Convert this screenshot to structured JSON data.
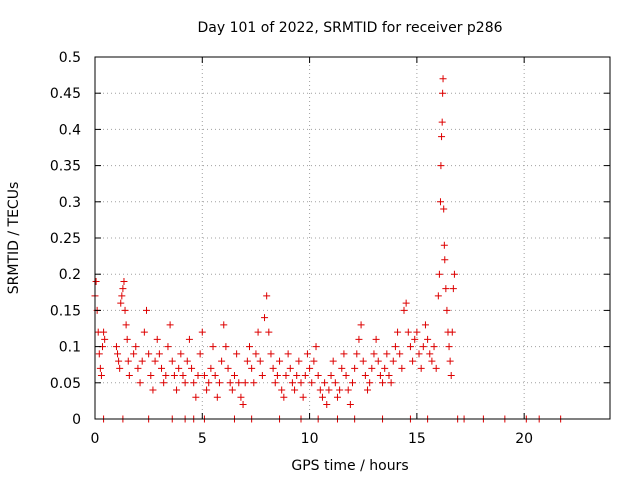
{
  "chart_data": {
    "type": "scatter",
    "title": "Day 101 of 2022, SRMTID for receiver p286",
    "xlabel": "GPS time / hours",
    "ylabel": "SRMTID / TECUs",
    "xlim": [
      0,
      24
    ],
    "ylim": [
      0,
      0.5
    ],
    "xticks": [
      0,
      5,
      10,
      15,
      20
    ],
    "xtick_labels": [
      "0",
      "5",
      "10",
      "15",
      "20"
    ],
    "yticks": [
      0,
      0.05,
      0.1,
      0.15,
      0.2,
      0.25,
      0.3,
      0.35,
      0.4,
      0.45,
      0.5
    ],
    "ytick_labels": [
      "0",
      "0.05",
      "0.1",
      "0.15",
      "0.2",
      "0.25",
      "0.3",
      "0.35",
      "0.4",
      "0.45",
      "0.5"
    ],
    "grid": true,
    "marker": "+",
    "color": "#dd0000",
    "series": [
      {
        "name": "SRMTID",
        "points": [
          [
            0.0,
            0.17
          ],
          [
            0.05,
            0.19
          ],
          [
            0.1,
            0.15
          ],
          [
            0.15,
            0.12
          ],
          [
            0.2,
            0.09
          ],
          [
            0.25,
            0.07
          ],
          [
            0.3,
            0.06
          ],
          [
            0.35,
            0.1
          ],
          [
            0.4,
            0.12
          ],
          [
            0.45,
            0.11
          ],
          [
            1.0,
            0.1
          ],
          [
            1.05,
            0.09
          ],
          [
            1.1,
            0.08
          ],
          [
            1.15,
            0.07
          ],
          [
            1.2,
            0.16
          ],
          [
            1.25,
            0.17
          ],
          [
            1.3,
            0.18
          ],
          [
            1.35,
            0.19
          ],
          [
            1.4,
            0.15
          ],
          [
            1.45,
            0.13
          ],
          [
            1.5,
            0.11
          ],
          [
            1.55,
            0.08
          ],
          [
            1.6,
            0.06
          ],
          [
            1.8,
            0.09
          ],
          [
            1.9,
            0.1
          ],
          [
            2.0,
            0.07
          ],
          [
            2.1,
            0.05
          ],
          [
            2.2,
            0.08
          ],
          [
            2.3,
            0.12
          ],
          [
            2.4,
            0.15
          ],
          [
            2.5,
            0.09
          ],
          [
            2.6,
            0.06
          ],
          [
            2.7,
            0.04
          ],
          [
            2.8,
            0.08
          ],
          [
            2.9,
            0.11
          ],
          [
            3.0,
            0.09
          ],
          [
            3.1,
            0.07
          ],
          [
            3.2,
            0.05
          ],
          [
            3.3,
            0.06
          ],
          [
            3.4,
            0.1
          ],
          [
            3.5,
            0.13
          ],
          [
            3.6,
            0.08
          ],
          [
            3.7,
            0.06
          ],
          [
            3.8,
            0.04
          ],
          [
            3.9,
            0.07
          ],
          [
            4.0,
            0.09
          ],
          [
            4.1,
            0.06
          ],
          [
            4.2,
            0.05
          ],
          [
            4.3,
            0.08
          ],
          [
            4.4,
            0.11
          ],
          [
            4.5,
            0.07
          ],
          [
            4.6,
            0.05
          ],
          [
            4.7,
            0.03
          ],
          [
            4.8,
            0.06
          ],
          [
            4.9,
            0.09
          ],
          [
            5.0,
            0.12
          ],
          [
            5.1,
            0.06
          ],
          [
            5.2,
            0.04
          ],
          [
            5.3,
            0.05
          ],
          [
            5.4,
            0.07
          ],
          [
            5.5,
            0.1
          ],
          [
            5.6,
            0.06
          ],
          [
            5.7,
            0.03
          ],
          [
            5.8,
            0.05
          ],
          [
            5.9,
            0.08
          ],
          [
            6.0,
            0.13
          ],
          [
            6.1,
            0.1
          ],
          [
            6.2,
            0.07
          ],
          [
            6.3,
            0.05
          ],
          [
            6.4,
            0.04
          ],
          [
            6.5,
            0.06
          ],
          [
            6.6,
            0.09
          ],
          [
            6.7,
            0.05
          ],
          [
            6.8,
            0.03
          ],
          [
            6.9,
            0.02
          ],
          [
            7.0,
            0.05
          ],
          [
            7.1,
            0.08
          ],
          [
            7.2,
            0.1
          ],
          [
            7.3,
            0.07
          ],
          [
            7.4,
            0.05
          ],
          [
            7.5,
            0.09
          ],
          [
            7.6,
            0.12
          ],
          [
            7.7,
            0.08
          ],
          [
            7.8,
            0.06
          ],
          [
            7.9,
            0.14
          ],
          [
            8.0,
            0.17
          ],
          [
            8.1,
            0.12
          ],
          [
            8.2,
            0.09
          ],
          [
            8.3,
            0.07
          ],
          [
            8.4,
            0.05
          ],
          [
            8.5,
            0.06
          ],
          [
            8.6,
            0.08
          ],
          [
            8.7,
            0.04
          ],
          [
            8.8,
            0.03
          ],
          [
            8.9,
            0.06
          ],
          [
            9.0,
            0.09
          ],
          [
            9.1,
            0.07
          ],
          [
            9.2,
            0.05
          ],
          [
            9.3,
            0.04
          ],
          [
            9.4,
            0.06
          ],
          [
            9.5,
            0.08
          ],
          [
            9.6,
            0.05
          ],
          [
            9.7,
            0.03
          ],
          [
            9.8,
            0.06
          ],
          [
            9.9,
            0.09
          ],
          [
            10.0,
            0.07
          ],
          [
            10.1,
            0.05
          ],
          [
            10.2,
            0.08
          ],
          [
            10.3,
            0.1
          ],
          [
            10.4,
            0.06
          ],
          [
            10.5,
            0.04
          ],
          [
            10.6,
            0.03
          ],
          [
            10.7,
            0.05
          ],
          [
            10.8,
            0.02
          ],
          [
            10.9,
            0.04
          ],
          [
            11.0,
            0.06
          ],
          [
            11.1,
            0.08
          ],
          [
            11.2,
            0.05
          ],
          [
            11.3,
            0.03
          ],
          [
            11.4,
            0.04
          ],
          [
            11.5,
            0.07
          ],
          [
            11.6,
            0.09
          ],
          [
            11.7,
            0.06
          ],
          [
            11.8,
            0.04
          ],
          [
            11.9,
            0.02
          ],
          [
            12.0,
            0.05
          ],
          [
            12.1,
            0.07
          ],
          [
            12.2,
            0.09
          ],
          [
            12.3,
            0.11
          ],
          [
            12.4,
            0.13
          ],
          [
            12.5,
            0.08
          ],
          [
            12.6,
            0.06
          ],
          [
            12.7,
            0.04
          ],
          [
            12.8,
            0.05
          ],
          [
            12.9,
            0.07
          ],
          [
            13.0,
            0.09
          ],
          [
            13.1,
            0.11
          ],
          [
            13.2,
            0.08
          ],
          [
            13.3,
            0.06
          ],
          [
            13.4,
            0.05
          ],
          [
            13.5,
            0.07
          ],
          [
            13.6,
            0.09
          ],
          [
            13.7,
            0.06
          ],
          [
            13.8,
            0.05
          ],
          [
            13.9,
            0.08
          ],
          [
            14.0,
            0.1
          ],
          [
            14.1,
            0.12
          ],
          [
            14.2,
            0.09
          ],
          [
            14.3,
            0.07
          ],
          [
            14.4,
            0.15
          ],
          [
            14.5,
            0.16
          ],
          [
            14.6,
            0.12
          ],
          [
            14.7,
            0.1
          ],
          [
            14.8,
            0.08
          ],
          [
            14.9,
            0.11
          ],
          [
            15.0,
            0.12
          ],
          [
            15.1,
            0.09
          ],
          [
            15.2,
            0.07
          ],
          [
            15.3,
            0.1
          ],
          [
            15.4,
            0.13
          ],
          [
            15.5,
            0.11
          ],
          [
            15.6,
            0.09
          ],
          [
            15.7,
            0.08
          ],
          [
            15.8,
            0.1
          ],
          [
            15.9,
            0.07
          ],
          [
            16.0,
            0.17
          ],
          [
            16.05,
            0.2
          ],
          [
            16.1,
            0.3
          ],
          [
            16.12,
            0.35
          ],
          [
            16.15,
            0.39
          ],
          [
            16.18,
            0.41
          ],
          [
            16.2,
            0.45
          ],
          [
            16.22,
            0.47
          ],
          [
            16.25,
            0.29
          ],
          [
            16.28,
            0.24
          ],
          [
            16.3,
            0.22
          ],
          [
            16.35,
            0.18
          ],
          [
            16.4,
            0.15
          ],
          [
            16.45,
            0.12
          ],
          [
            16.5,
            0.1
          ],
          [
            16.55,
            0.08
          ],
          [
            16.6,
            0.06
          ],
          [
            16.65,
            0.12
          ],
          [
            16.7,
            0.18
          ],
          [
            16.75,
            0.2
          ],
          [
            0.4,
            0.0
          ],
          [
            1.3,
            0.0
          ],
          [
            2.5,
            0.0
          ],
          [
            3.6,
            0.0
          ],
          [
            4.2,
            0.0
          ],
          [
            4.6,
            0.0
          ],
          [
            5.1,
            0.0
          ],
          [
            6.5,
            0.0
          ],
          [
            7.3,
            0.0
          ],
          [
            8.6,
            0.0
          ],
          [
            9.6,
            0.0
          ],
          [
            10.4,
            0.0
          ],
          [
            11.3,
            0.0
          ],
          [
            12.1,
            0.0
          ],
          [
            13.4,
            0.0
          ],
          [
            14.7,
            0.0
          ],
          [
            15.5,
            0.0
          ],
          [
            16.9,
            0.0
          ],
          [
            17.2,
            0.0
          ],
          [
            18.1,
            0.0
          ],
          [
            19.1,
            0.0
          ],
          [
            20.1,
            0.0
          ],
          [
            20.7,
            0.0
          ],
          [
            21.7,
            0.0
          ]
        ]
      }
    ]
  }
}
